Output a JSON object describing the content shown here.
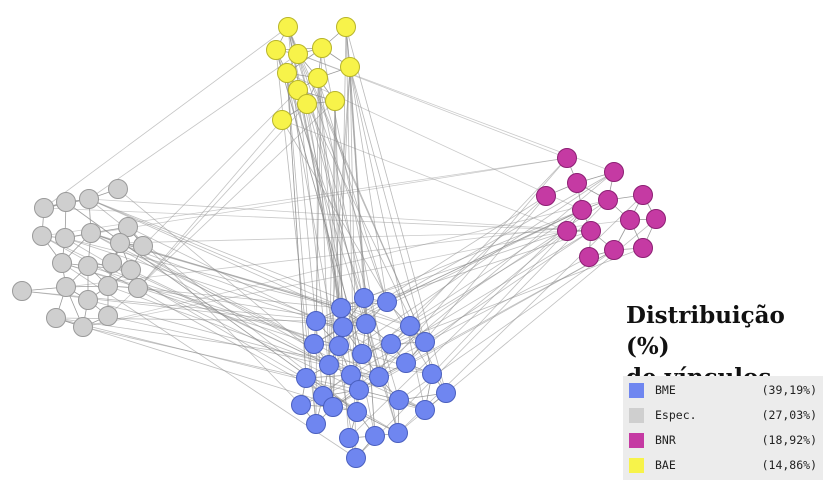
{
  "legend": {
    "title_line1": "Distribuição (%)",
    "title_line2": "de vínculos",
    "items": [
      {
        "label": "BME",
        "percent": "(39,19%)",
        "color": "#6f86f0"
      },
      {
        "label": "Espec.",
        "percent": "(27,03%)",
        "color": "#cfcfcf"
      },
      {
        "label": "BNR",
        "percent": "(18,92%)",
        "color": "#c53aa3"
      },
      {
        "label": "BAE",
        "percent": "(14,86%)",
        "color": "#f7f34a"
      }
    ]
  }
}
